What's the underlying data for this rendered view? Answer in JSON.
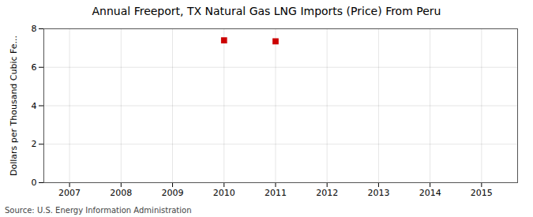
{
  "chart_data": {
    "type": "scatter",
    "title": "Annual Freeport, TX Natural Gas LNG Imports (Price) From Peru",
    "ylabel": "Dollars per Thousand Cubic Fe...",
    "source": "Source: U.S. Energy Information Administration",
    "x": [
      2010,
      2011
    ],
    "values": [
      7.4,
      7.35
    ],
    "color": "#cc0000",
    "marker": "square",
    "xlim": [
      2006.5,
      2015.7
    ],
    "xticks": [
      2007,
      2008,
      2009,
      2010,
      2011,
      2012,
      2013,
      2014,
      2015
    ],
    "ylim": [
      0,
      8
    ],
    "yticks": [
      0,
      2,
      4,
      6,
      8
    ],
    "grid": true
  }
}
